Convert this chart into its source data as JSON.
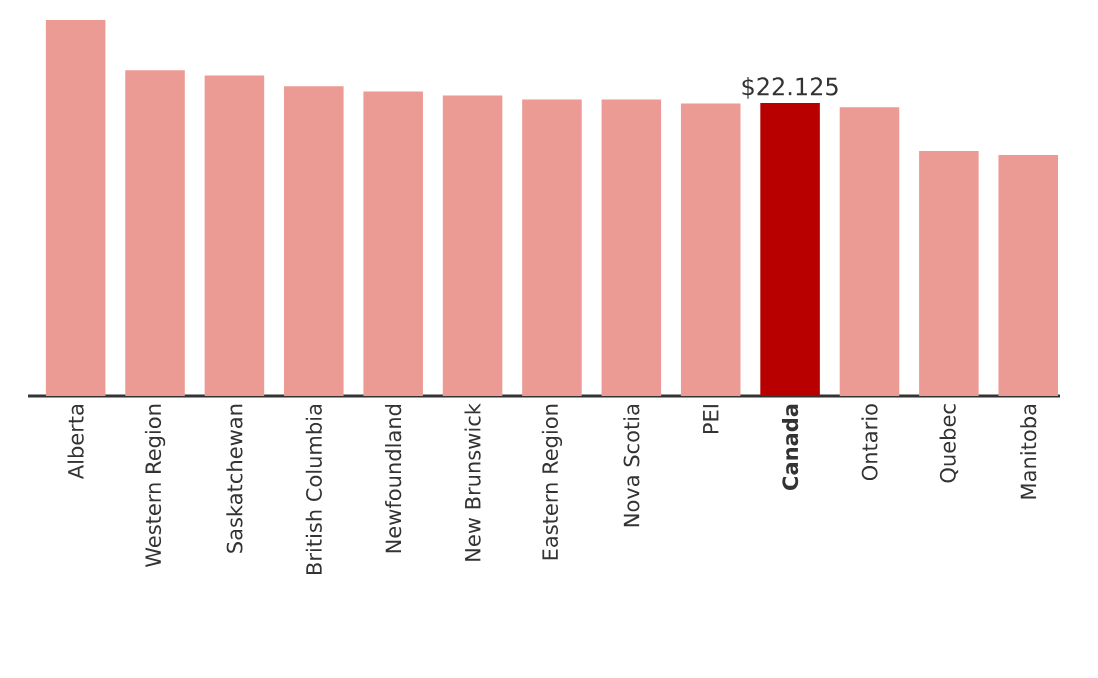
{
  "chart_data": {
    "type": "bar",
    "categories": [
      "Alberta",
      "Western Region",
      "Saskatchewan",
      "British Columbia",
      "Newfoundland",
      "New Brunswick",
      "Eastern Region",
      "Nova Scotia",
      "PEI",
      "Canada",
      "Ontario",
      "Quebec",
      "Manitoba"
    ],
    "values": [
      28.4,
      24.6,
      24.2,
      23.4,
      23.0,
      22.7,
      22.4,
      22.4,
      22.1,
      22.125,
      21.8,
      18.5,
      18.2
    ],
    "color": "#ec9a94",
    "colors": [
      "#ec9a94",
      "#ec9a94",
      "#ec9a94",
      "#ec9a94",
      "#ec9a94",
      "#ec9a94",
      "#ec9a94",
      "#ec9a94",
      "#ec9a94",
      "#b90000",
      "#ec9a94",
      "#ec9a94",
      "#ec9a94"
    ],
    "value_labels": [
      null,
      null,
      null,
      null,
      null,
      null,
      null,
      null,
      null,
      "$22.125",
      null,
      null,
      null
    ],
    "ylim": [
      0,
      28.4
    ],
    "tick_labels": "x",
    "grid": false
  }
}
